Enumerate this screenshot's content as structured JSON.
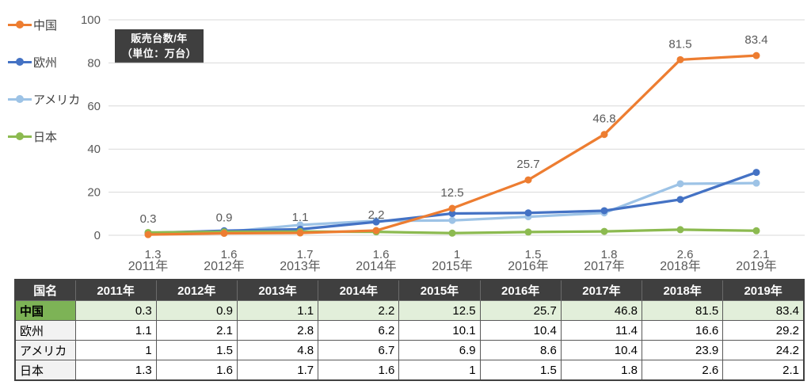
{
  "chart_data": {
    "type": "line",
    "title": "",
    "unit_label_line1": "販売台数/年",
    "unit_label_line2": "（単位：万台）",
    "categories": [
      "2011年",
      "2012年",
      "2013年",
      "2014年",
      "2015年",
      "2016年",
      "2017年",
      "2018年",
      "2019年"
    ],
    "series": [
      {
        "name": "中国",
        "color": "#ED7D31",
        "values": [
          0.3,
          0.9,
          1.1,
          2.2,
          12.5,
          25.7,
          46.8,
          81.5,
          83.4
        ],
        "data_labels": "above-points"
      },
      {
        "name": "欧州",
        "color": "#4472C4",
        "values": [
          1.1,
          2.1,
          2.8,
          6.2,
          10.1,
          10.4,
          11.4,
          16.6,
          29.2
        ],
        "data_labels": "none"
      },
      {
        "name": "アメリカ",
        "color": "#9DC3E6",
        "values": [
          1,
          1.5,
          4.8,
          6.7,
          6.9,
          8.6,
          10.4,
          23.9,
          24.2
        ],
        "data_labels": "none"
      },
      {
        "name": "日本",
        "color": "#8CBA50",
        "values": [
          1.3,
          1.6,
          1.7,
          1.6,
          1,
          1.5,
          1.8,
          2.6,
          2.1
        ],
        "data_labels": "below-axis"
      }
    ],
    "xlabel": "",
    "ylabel": "",
    "ylim": [
      0,
      100
    ],
    "yticks": [
      0,
      20,
      40,
      60,
      80,
      100
    ],
    "grid": true,
    "legend_position": "left",
    "tick_color": "#595959",
    "gridline_color": "#D9D9D9",
    "data_label_color": "#595959"
  },
  "table": {
    "name_header": "国名",
    "year_headers": [
      "2011年",
      "2012年",
      "2013年",
      "2014年",
      "2015年",
      "2016年",
      "2017年",
      "2018年",
      "2019年"
    ],
    "rows": [
      {
        "name": "中国",
        "values": [
          0.3,
          0.9,
          1.1,
          2.2,
          12.5,
          25.7,
          46.8,
          81.5,
          83.4
        ],
        "highlight": true
      },
      {
        "name": "欧州",
        "values": [
          1.1,
          2.1,
          2.8,
          6.2,
          10.1,
          10.4,
          11.4,
          16.6,
          29.2
        ],
        "highlight": false
      },
      {
        "name": "アメリカ",
        "values": [
          1,
          1.5,
          4.8,
          6.7,
          6.9,
          8.6,
          10.4,
          23.9,
          24.2
        ],
        "highlight": false
      },
      {
        "name": "日本",
        "values": [
          1.3,
          1.6,
          1.7,
          1.6,
          1,
          1.5,
          1.8,
          2.6,
          2.1
        ],
        "highlight": false
      }
    ]
  },
  "colors": {
    "header_bg": "#3F3F3F",
    "china_name_bg": "#7DB356",
    "china_row_bg": "#E2EFDA",
    "name_col_bg": "#F2F2F2"
  }
}
